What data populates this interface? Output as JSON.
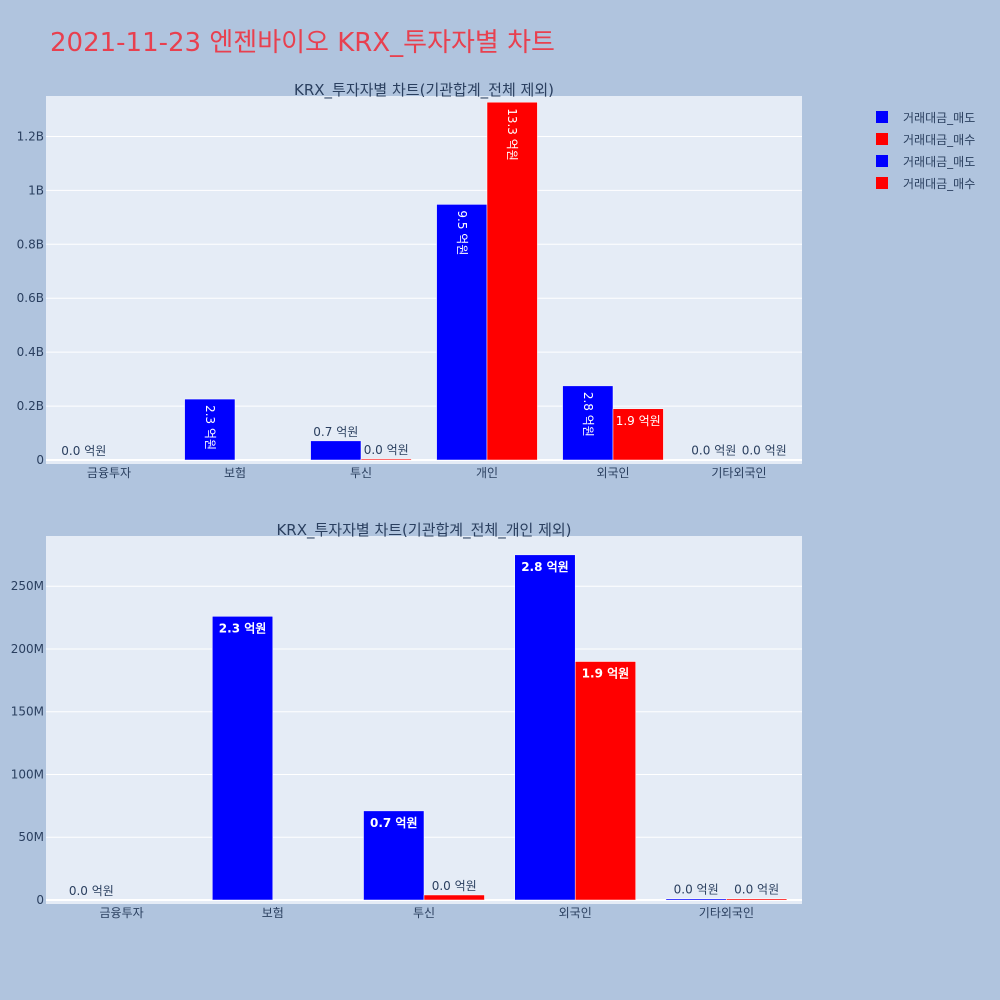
{
  "page": {
    "title": "2021-11-23 엔젠바이오 KRX_투자자별 차트",
    "title_color": "#e8404f",
    "background": "#b0c4de",
    "plot_background": "#e5ecf6"
  },
  "legend": {
    "items": [
      {
        "label": "거래대금_매도",
        "color": "#0000ff"
      },
      {
        "label": "거래대금_매수",
        "color": "#ff0000"
      },
      {
        "label": "거래대금_매도",
        "color": "#0000ff"
      },
      {
        "label": "거래대금_매수",
        "color": "#ff0000"
      }
    ]
  },
  "chart_data": [
    {
      "type": "bar",
      "title": "KRX_투자자별 차트(기관합계_전체 제외)",
      "categories": [
        "금융투자",
        "보험",
        "투신",
        "개인",
        "외국인",
        "기타외국인"
      ],
      "ylim": [
        0,
        1350000000
      ],
      "yticks": [
        0,
        200000000,
        400000000,
        600000000,
        800000000,
        1000000000,
        1200000000
      ],
      "ytick_labels": [
        "0",
        "0.2B",
        "0.4B",
        "0.6B",
        "0.8B",
        "1B",
        "1.2B"
      ],
      "grid": true,
      "series": [
        {
          "name": "거래대금_매도",
          "color": "#0000ff",
          "values": [
            0,
            226000000,
            71000000,
            948000000,
            275000000,
            1000000
          ],
          "labels": [
            "0.0 억원",
            "2.3 억원",
            "0.7 억원",
            "9.5 억원",
            "2.8 억원",
            "0.0 억원"
          ]
        },
        {
          "name": "거래대금_매수",
          "color": "#ff0000",
          "values": [
            0,
            0,
            4000000,
            1327000000,
            190000000,
            1000000
          ],
          "labels": [
            "",
            "",
            "0.0 억원",
            "13.3 억원",
            "1.9 억원",
            "0.0 억원"
          ]
        }
      ]
    },
    {
      "type": "bar",
      "title": "KRX_투자자별 차트(기관합계_전체_개인 제외)",
      "categories": [
        "금융투자",
        "보험",
        "투신",
        "외국인",
        "기타외국인"
      ],
      "ylim": [
        0,
        290000000
      ],
      "yticks": [
        0,
        50000000,
        100000000,
        150000000,
        200000000,
        250000000
      ],
      "ytick_labels": [
        "0",
        "50M",
        "100M",
        "150M",
        "200M",
        "250M"
      ],
      "grid": true,
      "series": [
        {
          "name": "거래대금_매도",
          "color": "#0000ff",
          "values": [
            0,
            226000000,
            71000000,
            275000000,
            1000000
          ],
          "labels": [
            "0.0 억원",
            "2.3 억원",
            "0.7 억원",
            "2.8 억원",
            "0.0 억원"
          ]
        },
        {
          "name": "거래대금_매수",
          "color": "#ff0000",
          "values": [
            0,
            0,
            4000000,
            190000000,
            1000000
          ],
          "labels": [
            "",
            "",
            "0.0 억원",
            "1.9 억원",
            "0.0 억원"
          ]
        }
      ]
    }
  ]
}
